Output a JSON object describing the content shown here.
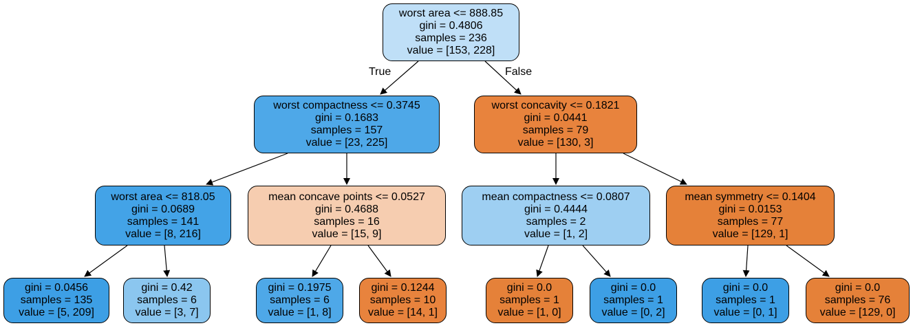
{
  "tree": {
    "colors": {
      "very_light_blue": "#bfdff7",
      "blue": "#4ea8e8",
      "blue_dark": "#43a3e7",
      "blue_leaf": "#3d9fe5",
      "light_blue": "#9ecff2",
      "light_blue_leaf": "#8bc6ef",
      "orange": "#e8833d",
      "orange_dark": "#e58139",
      "peach": "#f6cdb0"
    },
    "nodes": [
      {
        "id": "n0",
        "split": "worst area <= 888.85",
        "gini": "gini = 0.4806",
        "samples": "samples = 236",
        "value": "value = [153, 228]"
      },
      {
        "id": "n1",
        "split": "worst compactness <= 0.3745",
        "gini": "gini = 0.1683",
        "samples": "samples = 157",
        "value": "value = [23, 225]"
      },
      {
        "id": "n2",
        "split": "worst concavity <= 0.1821",
        "gini": "gini = 0.0441",
        "samples": "samples = 79",
        "value": "value = [130, 3]"
      },
      {
        "id": "n3",
        "split": "worst area <= 818.05",
        "gini": "gini = 0.0689",
        "samples": "samples = 141",
        "value": "value = [8, 216]"
      },
      {
        "id": "n4",
        "split": "mean concave points <= 0.0527",
        "gini": "gini = 0.4688",
        "samples": "samples = 16",
        "value": "value = [15, 9]"
      },
      {
        "id": "n5",
        "split": "mean compactness <= 0.0807",
        "gini": "gini = 0.4444",
        "samples": "samples = 2",
        "value": "value = [1, 2]"
      },
      {
        "id": "n6",
        "split": "mean symmetry <= 0.1404",
        "gini": "gini = 0.0153",
        "samples": "samples = 77",
        "value": "value = [129, 1]"
      },
      {
        "id": "n7",
        "gini": "gini = 0.0456",
        "samples": "samples = 135",
        "value": "value = [5, 209]"
      },
      {
        "id": "n8",
        "gini": "gini = 0.42",
        "samples": "samples = 6",
        "value": "value = [3, 7]"
      },
      {
        "id": "n9",
        "gini": "gini = 0.1975",
        "samples": "samples = 6",
        "value": "value = [1, 8]"
      },
      {
        "id": "n10",
        "gini": "gini = 0.1244",
        "samples": "samples = 10",
        "value": "value = [14, 1]"
      },
      {
        "id": "n11",
        "gini": "gini = 0.0",
        "samples": "samples = 1",
        "value": "value = [1, 0]"
      },
      {
        "id": "n12",
        "gini": "gini = 0.0",
        "samples": "samples = 1",
        "value": "value = [0, 2]"
      },
      {
        "id": "n13",
        "gini": "gini = 0.0",
        "samples": "samples = 1",
        "value": "value = [0, 1]"
      },
      {
        "id": "n14",
        "gini": "gini = 0.0",
        "samples": "samples = 76",
        "value": "value = [129, 0]"
      }
    ],
    "edges": [
      {
        "from": "n0",
        "to": "n1"
      },
      {
        "from": "n0",
        "to": "n2"
      },
      {
        "from": "n1",
        "to": "n3"
      },
      {
        "from": "n1",
        "to": "n4"
      },
      {
        "from": "n2",
        "to": "n5"
      },
      {
        "from": "n2",
        "to": "n6"
      },
      {
        "from": "n3",
        "to": "n7"
      },
      {
        "from": "n3",
        "to": "n8"
      },
      {
        "from": "n4",
        "to": "n9"
      },
      {
        "from": "n4",
        "to": "n10"
      },
      {
        "from": "n5",
        "to": "n11"
      },
      {
        "from": "n5",
        "to": "n12"
      },
      {
        "from": "n6",
        "to": "n13"
      },
      {
        "from": "n6",
        "to": "n14"
      }
    ],
    "edge_labels": {
      "true_label": "True",
      "false_label": "False"
    }
  }
}
